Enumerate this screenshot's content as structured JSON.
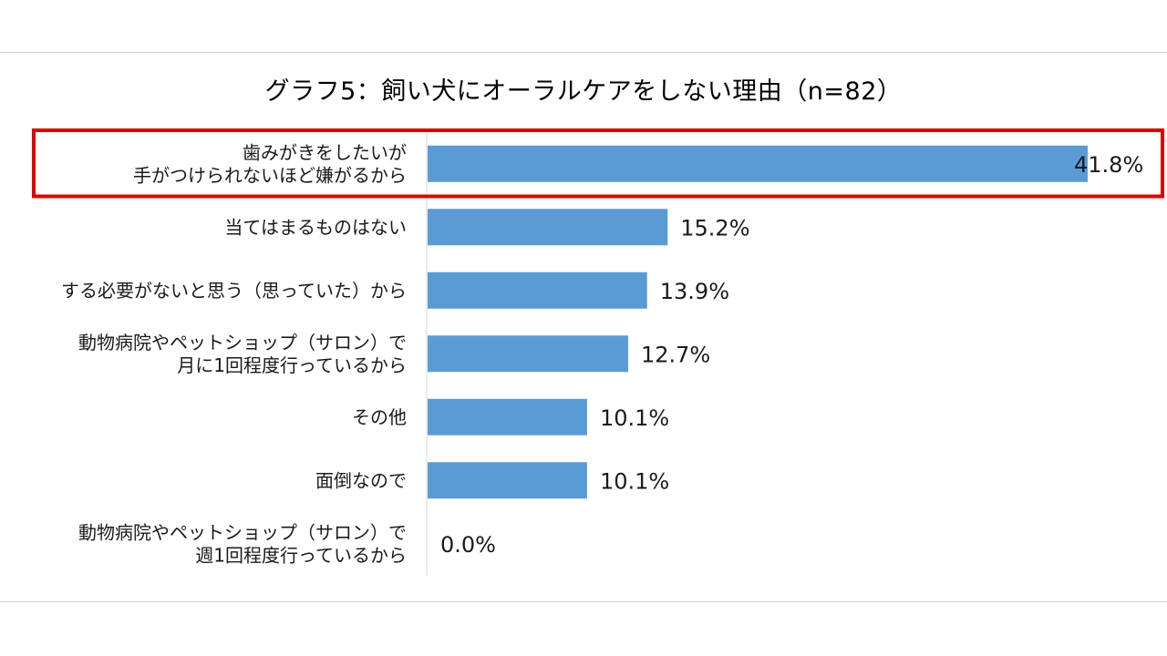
{
  "chart_data": {
    "type": "bar",
    "orientation": "horizontal",
    "title": "グラフ5：飼い犬にオーラルケアをしない理由（n=82）",
    "categories": [
      [
        "歯みがきをしたいが",
        "手がつけられないほど嫌がるから"
      ],
      [
        "当てはまるものはない"
      ],
      [
        "する必要がないと思う（思っていた）から"
      ],
      [
        "動物病院やペットショップ（サロン）で",
        "月に1回程度行っているから"
      ],
      [
        "その他"
      ],
      [
        "面倒なので"
      ],
      [
        "動物病院やペットショップ（サロン）で",
        "週1回程度行っているから"
      ]
    ],
    "values": [
      41.8,
      15.2,
      13.9,
      12.7,
      10.1,
      10.1,
      0.0
    ],
    "labels": [
      "41.8%",
      "15.2%",
      "13.9%",
      "12.7%",
      "10.1%",
      "10.1%",
      "0.0%"
    ],
    "xlim": [
      0,
      45
    ],
    "bar_color": "#5b9bd5",
    "highlight_index": 0,
    "highlight_color": "#e00000",
    "grid": false,
    "legend": "none"
  }
}
